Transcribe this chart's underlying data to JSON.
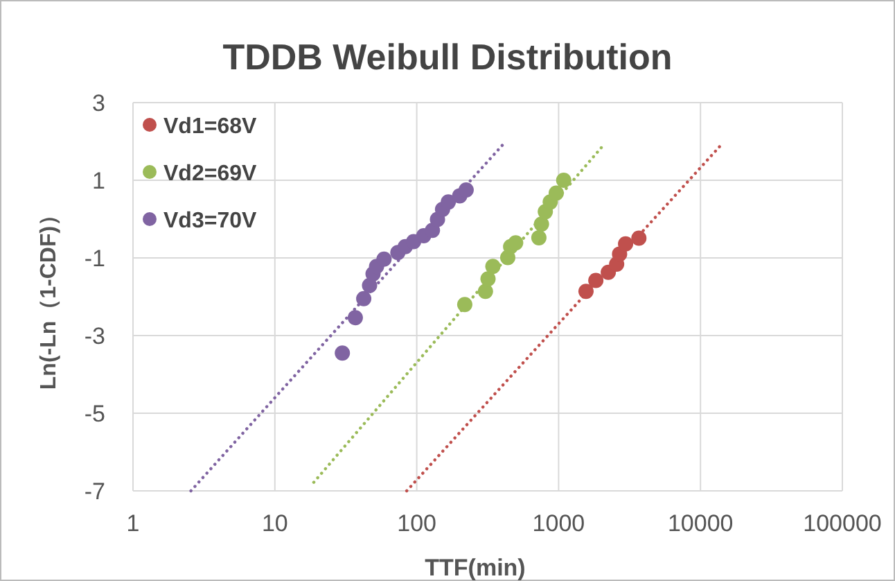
{
  "chart_data": {
    "type": "scatter",
    "title": "TDDB Weibull Distribution",
    "xlabel": "TTF(min)",
    "ylabel": "Ln(-Ln（1-CDF)）",
    "log": "x",
    "xlim": [
      1,
      100000
    ],
    "xticks": [
      1,
      10,
      100,
      1000,
      10000,
      100000
    ],
    "ylim": [
      -7,
      3
    ],
    "yticks": [
      -7,
      -5,
      -3,
      -1,
      1,
      3
    ],
    "grid": true,
    "legend": "top left",
    "marker": "circle",
    "series": [
      {
        "name": "Vd1=68V",
        "color": "#c0504d",
        "x": [
          1560,
          1830,
          2240,
          2565,
          2690,
          2965,
          3680
        ],
        "values": [
          -1.86,
          -1.58,
          -1.37,
          -1.16,
          -0.9,
          -0.64,
          -0.49
        ]
      },
      {
        "name": "Vd2=69V",
        "color": "#9bbb59",
        "x": [
          218,
          305,
          318,
          344,
          438,
          459,
          498,
          726,
          757,
          806,
          873,
          962,
          1086
        ],
        "values": [
          -2.2,
          -1.86,
          -1.54,
          -1.22,
          -0.99,
          -0.71,
          -0.61,
          -0.48,
          -0.13,
          0.19,
          0.44,
          0.67,
          1.0
        ]
      },
      {
        "name": "Vd3=70V",
        "color": "#8064a2",
        "x": [
          29.9,
          36.9,
          42.3,
          46.5,
          49.2,
          52.1,
          58.8,
          73.6,
          83,
          95,
          112,
          129,
          140,
          152,
          167,
          201,
          223
        ],
        "values": [
          -3.45,
          -2.54,
          -2.05,
          -1.71,
          -1.41,
          -1.22,
          -1.03,
          -0.86,
          -0.71,
          -0.58,
          -0.43,
          -0.29,
          -0.01,
          0.25,
          0.44,
          0.6,
          0.75
        ]
      },
      {
        "type": "line",
        "line_style": "dotted",
        "marker": "none",
        "color": "#c0504d",
        "x": [
          85,
          14300
        ],
        "values": [
          -7,
          1.95
        ]
      },
      {
        "type": "line",
        "line_style": "dotted",
        "marker": "none",
        "color": "#9bbb59",
        "x": [
          18.8,
          2032
        ],
        "values": [
          -6.78,
          1.87
        ]
      },
      {
        "type": "line",
        "line_style": "dotted",
        "marker": "none",
        "color": "#8064a2",
        "x": [
          2.56,
          424
        ],
        "values": [
          -7,
          2.0
        ]
      }
    ]
  }
}
